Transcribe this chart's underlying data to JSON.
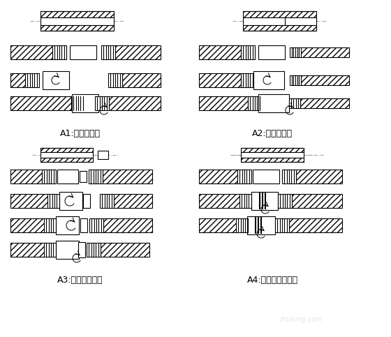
{
  "fig_width": 5.6,
  "fig_height": 4.83,
  "dpi": 100,
  "bg_color": "#ffffff",
  "hatch_color": "#555555",
  "line_color": "#000000",
  "labels": {
    "A1": "A1:标准型接头",
    "A2": "A2:异径型接头",
    "A3": "A3:加锁母型接头",
    "A4": "A4:正反丝扣型接头"
  },
  "label_fontsize": 9,
  "watermark": "zhulong.com"
}
